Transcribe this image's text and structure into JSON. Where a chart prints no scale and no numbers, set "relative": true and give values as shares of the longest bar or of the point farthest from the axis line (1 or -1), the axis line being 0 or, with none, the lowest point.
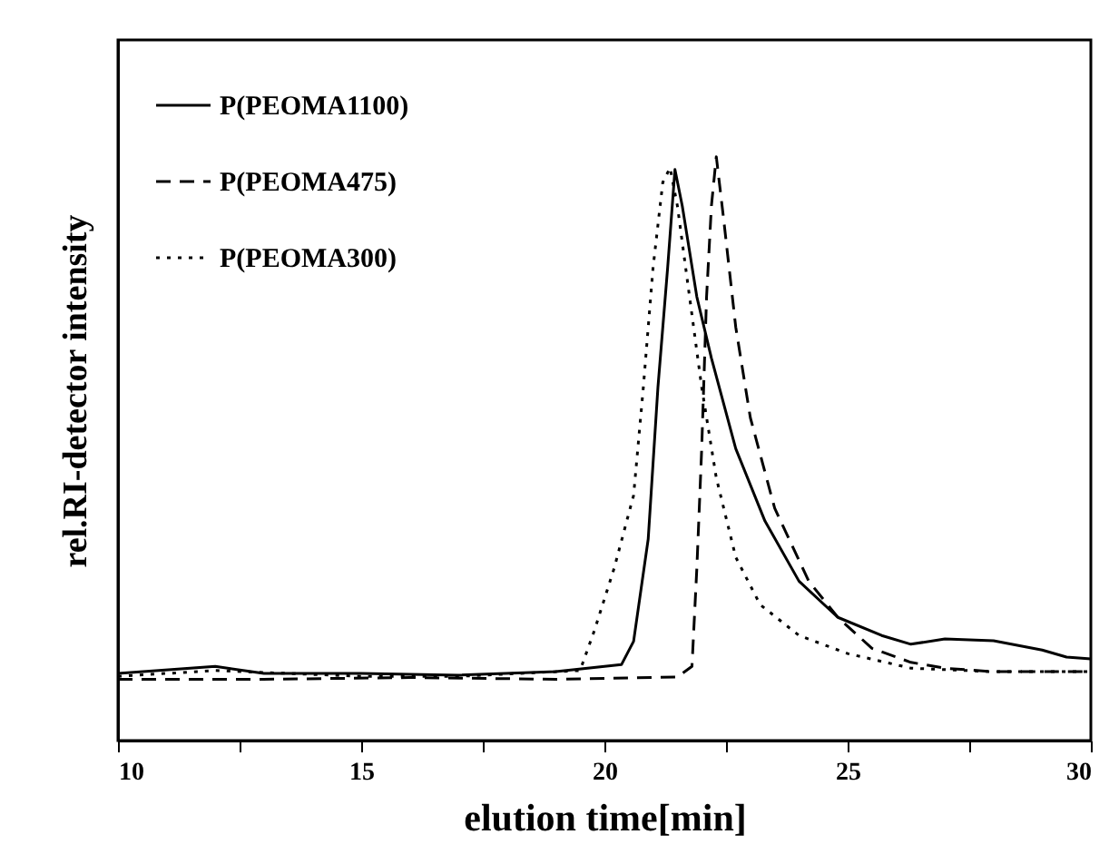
{
  "chart_data": {
    "type": "line",
    "xlabel": "elution time[min]",
    "ylabel": "rel.RI-detector intensity",
    "relative": true,
    "xlim": [
      10,
      30
    ],
    "xticks": [
      10,
      {
        "value": 12.5,
        "label": null
      },
      15,
      {
        "value": 17.5,
        "label": null
      },
      20,
      {
        "value": 22.5,
        "label": null
      },
      25,
      {
        "value": 27.5,
        "label": null
      },
      30
    ],
    "grid": false,
    "legend": "top left",
    "marker": "none",
    "series": [
      {
        "name": "P(PEOMA1100)",
        "color": "#000000",
        "line_style": "solid",
        "x": [
          10,
          12,
          13,
          15,
          17,
          19,
          20.35,
          20.6,
          20.9,
          21.1,
          21.3,
          21.45,
          21.6,
          21.9,
          22.2,
          22.7,
          23.3,
          24,
          24.8,
          25.7,
          26.3,
          27,
          28,
          29,
          29.5,
          30
        ],
        "values": [
          0.115,
          0.127,
          0.115,
          0.115,
          0.112,
          0.118,
          0.13,
          0.17,
          0.345,
          0.605,
          0.81,
          0.978,
          0.916,
          0.76,
          0.655,
          0.5,
          0.376,
          0.273,
          0.211,
          0.18,
          0.165,
          0.174,
          0.171,
          0.155,
          0.143,
          0.14
        ]
      },
      {
        "name": "P(PEOMA475)",
        "color": "#000000",
        "line_style": "dashed",
        "x": [
          10,
          13,
          16,
          19,
          21.5,
          21.8,
          21.9,
          22,
          22.1,
          22.2,
          22.3,
          22.45,
          22.7,
          23,
          23.5,
          24.2,
          24.8,
          25.5,
          26.3,
          27,
          28,
          30
        ],
        "values": [
          0.105,
          0.105,
          0.108,
          0.105,
          0.109,
          0.127,
          0.295,
          0.5,
          0.76,
          0.916,
          1,
          0.894,
          0.708,
          0.553,
          0.398,
          0.273,
          0.211,
          0.158,
          0.134,
          0.124,
          0.118,
          0.118
        ]
      },
      {
        "name": "P(PEOMA300)",
        "color": "#000000",
        "line_style": "dotted",
        "x": [
          10,
          12,
          15,
          17,
          19.5,
          19.8,
          20.2,
          20.6,
          20.8,
          21,
          21.2,
          21.35,
          21.5,
          21.75,
          22,
          22.3,
          22.7,
          23.2,
          24,
          25,
          26.3,
          28,
          30
        ],
        "values": [
          0.11,
          0.12,
          0.11,
          0.11,
          0.12,
          0.19,
          0.295,
          0.42,
          0.605,
          0.81,
          0.956,
          0.981,
          0.916,
          0.76,
          0.605,
          0.45,
          0.314,
          0.233,
          0.18,
          0.149,
          0.124,
          0.118,
          0.118
        ]
      }
    ]
  }
}
